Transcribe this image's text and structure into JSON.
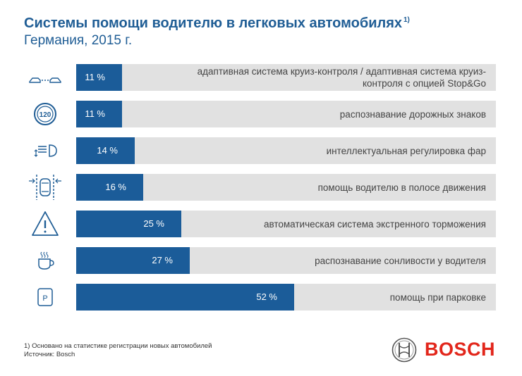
{
  "title": "Системы помощи водителю в легковых автомобилях",
  "title_note": "1)",
  "subtitle": "Германия, 2015 г.",
  "chart_data": {
    "type": "bar",
    "orientation": "horizontal",
    "title": "Системы помощи водителю в легковых автомобилях",
    "subtitle": "Германия, 2015 г.",
    "ylim": [
      0,
      100
    ],
    "categories": [
      "адаптивная система круиз-контроля / адаптивная система круиз-контроля с опцией Stop&Go",
      "распознавание дорожных знаков",
      "интеллектуальная регулировка фар",
      "помощь водителю в полосе движения",
      "автоматическая система экстренного торможения",
      "распознавание сонливости у водителя",
      "помощь при парковке"
    ],
    "values": [
      11,
      11,
      14,
      16,
      25,
      27,
      52
    ],
    "value_labels": [
      "11 %",
      "11 %",
      "14 %",
      "16 %",
      "25 %",
      "27 %",
      "52 %"
    ],
    "colors": {
      "bar": "#1b5c99",
      "track": "#e1e1e1",
      "title": "#1f5d95"
    }
  },
  "rows": [
    {
      "icon": "adaptive-cruise-icon",
      "label": "адаптивная система круиз-контроля / адаптивная система круиз-контроля с опцией Stop&Go",
      "value": "11 %"
    },
    {
      "icon": "speed-sign-icon",
      "sign_text": "120",
      "label": "распознавание дорожных знаков",
      "value": "11 %"
    },
    {
      "icon": "headlight-icon",
      "label": "интеллектуальная регулировка фар",
      "value": "14 %"
    },
    {
      "icon": "lane-assist-icon",
      "label": "помощь водителю в полосе движения",
      "value": "16 %"
    },
    {
      "icon": "warning-triangle-icon",
      "label": "автоматическая система экстренного торможения",
      "value": "25 %"
    },
    {
      "icon": "coffee-cup-icon",
      "label": "распознавание сонливости у водителя",
      "value": "27 %"
    },
    {
      "icon": "parking-icon",
      "sign_text": "P",
      "label": "помощь при парковке",
      "value": "52 %"
    }
  ],
  "footnote": "1) Основано на статистике регистрации новых автомобилей",
  "source": "Источник: Bosch",
  "logo_text": "BOSCH"
}
